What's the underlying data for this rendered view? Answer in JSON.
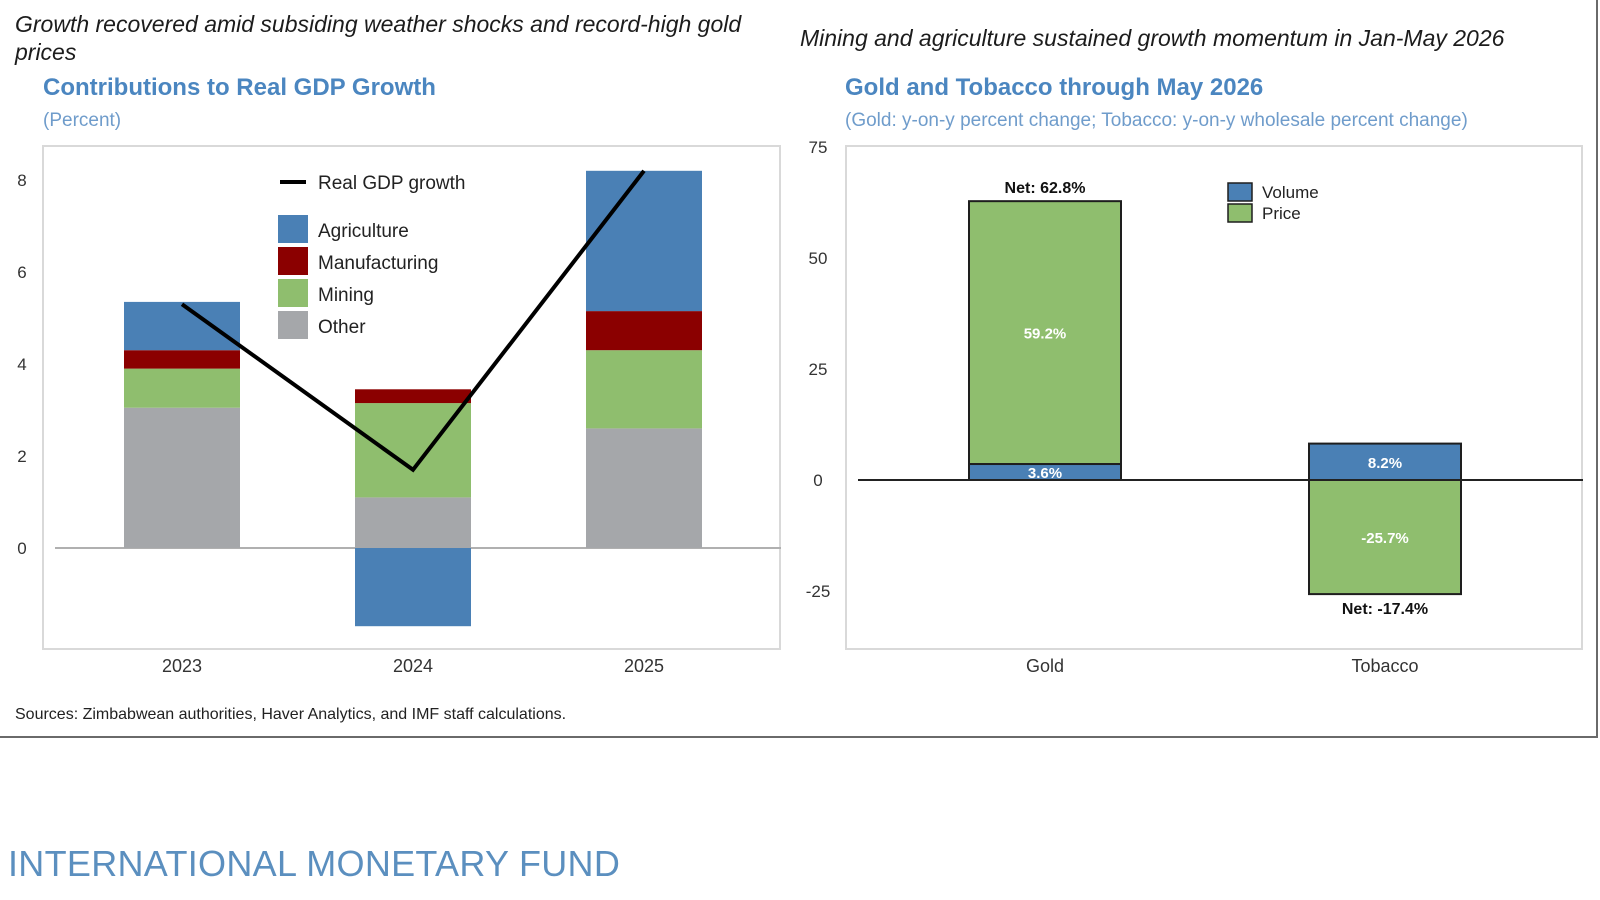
{
  "headlines": {
    "left": "Growth recovered amid subsiding weather shocks and record-high gold prices",
    "right": "Mining and agriculture sustained growth momentum in Jan-May 2026"
  },
  "source": "Sources: Zimbabwean authorities, Haver Analytics, and IMF staff calculations.",
  "footer": "INTERNATIONAL MONETARY FUND",
  "colors": {
    "title_blue": "#4b86c0",
    "agriculture": "#4a80b5",
    "manufacturing": "#8b0000",
    "mining": "#8fbe6e",
    "other": "#a5a7aa",
    "line": "#000000"
  },
  "chart_data": [
    {
      "type": "bar",
      "stacked": true,
      "title": "Contributions to Real GDP Growth",
      "subtitle": "(Percent)",
      "categories": [
        "2023",
        "2024",
        "2025"
      ],
      "ylim": [
        -1.8,
        8.6
      ],
      "yticks": [
        0,
        2,
        4,
        6,
        8
      ],
      "legend_position": "top-center",
      "series": [
        {
          "name": "Other",
          "values": [
            3.05,
            1.1,
            2.6
          ]
        },
        {
          "name": "Mining",
          "values": [
            0.85,
            2.05,
            1.7
          ]
        },
        {
          "name": "Manufacturing",
          "values": [
            0.4,
            0.3,
            0.85
          ]
        },
        {
          "name": "Agriculture",
          "values": [
            1.05,
            -1.7,
            3.05
          ]
        }
      ],
      "line": {
        "name": "Real GDP growth",
        "values": [
          5.3,
          1.7,
          8.2
        ]
      }
    },
    {
      "type": "bar",
      "stacked": true,
      "title": "Gold and Tobacco through May 2026",
      "subtitle": "(Gold: y-on-y percent change; Tobacco: y-on-y wholesale percent change)",
      "categories": [
        "Gold",
        "Tobacco"
      ],
      "ylim": [
        -30,
        75
      ],
      "yticks": [
        75,
        50,
        25,
        0,
        -25
      ],
      "legend_position": "top-right",
      "series": [
        {
          "name": "Volume",
          "values": [
            3.6,
            8.2
          ],
          "labels": [
            "3.6%",
            "8.2%"
          ]
        },
        {
          "name": "Price",
          "values": [
            59.2,
            -25.7
          ],
          "labels": [
            "59.2%",
            "-25.7%"
          ]
        }
      ],
      "net_labels": [
        "Net: 62.8%",
        "Net: -17.4%"
      ]
    }
  ]
}
